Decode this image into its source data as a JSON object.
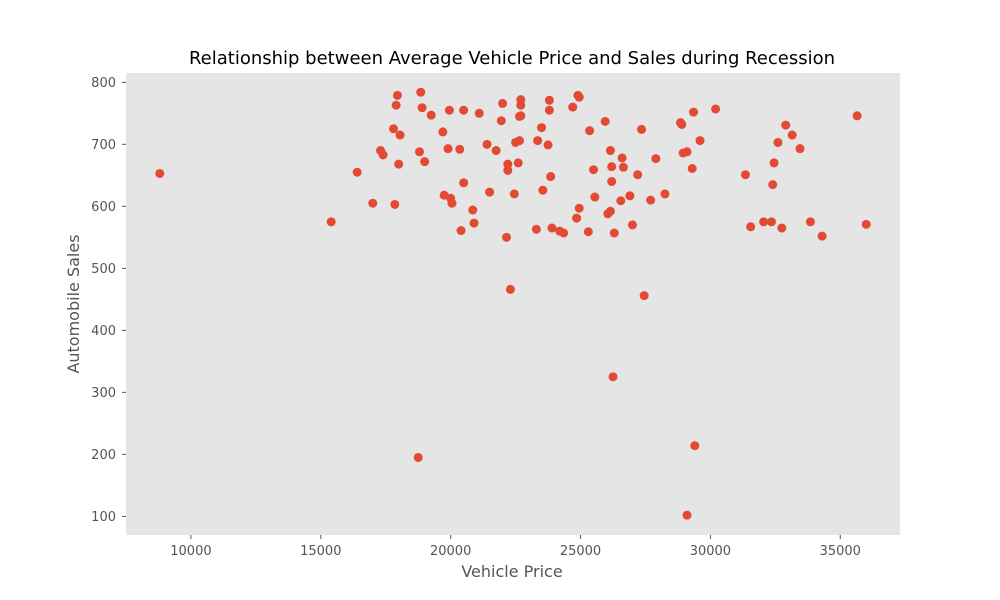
{
  "chart_data": {
    "type": "scatter",
    "title": "Relationship between Average Vehicle Price and Sales during Recession",
    "xlabel": "Vehicle Price",
    "ylabel": "Automobile Sales",
    "xlim": [
      7500,
      37300
    ],
    "ylim": [
      70,
      815
    ],
    "xticks": [
      10000,
      15000,
      20000,
      25000,
      30000,
      35000
    ],
    "yticks": [
      100,
      200,
      300,
      400,
      500,
      600,
      700,
      800
    ],
    "grid": false,
    "legend": "none",
    "colors": {
      "point": "#e24a33",
      "plot_background": "#e5e5e5"
    },
    "series": [
      {
        "x": [
          8800,
          15400,
          16400,
          17000,
          17300,
          17400,
          17800,
          17850,
          17900,
          17950,
          18000,
          18050,
          18750,
          18800,
          18850,
          18900,
          19000,
          19250,
          19700,
          19750,
          19900,
          19950,
          20000,
          20050,
          20350,
          20400,
          20500,
          20500,
          20850,
          20900,
          21100,
          21400,
          21500,
          21750,
          21950,
          22000,
          22150,
          22200,
          22200,
          22300,
          22450,
          22500,
          22600,
          22650,
          22650,
          22700,
          22700,
          22700,
          23300,
          23350,
          23500,
          23550,
          23750,
          23800,
          23800,
          23850,
          23900,
          24200,
          24350,
          24700,
          24850,
          24900,
          24950,
          24950,
          25300,
          25350,
          25500,
          25550,
          25950,
          26050,
          26150,
          26150,
          26200,
          26200,
          26250,
          26300,
          26550,
          26600,
          26650,
          26900,
          27000,
          27200,
          27350,
          27450,
          27700,
          27900,
          28250,
          28850,
          28900,
          28950,
          29100,
          29100,
          29300,
          29350,
          29400,
          29600,
          30200,
          31350,
          31550,
          32050,
          32350,
          32400,
          32450,
          32600,
          32750,
          32900,
          33150,
          33450,
          33850,
          34300,
          35650,
          36000
        ],
        "y": [
          653,
          575,
          655,
          605,
          690,
          683,
          725,
          603,
          763,
          779,
          668,
          715,
          195,
          688,
          784,
          759,
          672,
          747,
          720,
          618,
          693,
          755,
          613,
          605,
          692,
          561,
          638,
          755,
          594,
          573,
          750,
          700,
          623,
          690,
          738,
          766,
          550,
          668,
          658,
          466,
          620,
          703,
          670,
          745,
          706,
          772,
          746,
          763,
          563,
          706,
          727,
          626,
          699,
          771,
          755,
          648,
          565,
          560,
          557,
          760,
          581,
          779,
          776,
          597,
          559,
          722,
          659,
          615,
          737,
          588,
          592,
          690,
          640,
          664,
          325,
          557,
          609,
          678,
          663,
          617,
          570,
          651,
          724,
          456,
          610,
          677,
          620,
          735,
          732,
          686,
          102,
          688,
          661,
          752,
          214,
          706,
          757,
          651,
          567,
          575,
          575,
          635,
          670,
          703,
          565,
          731,
          715,
          693,
          575,
          552,
          746,
          571
        ]
      }
    ]
  }
}
